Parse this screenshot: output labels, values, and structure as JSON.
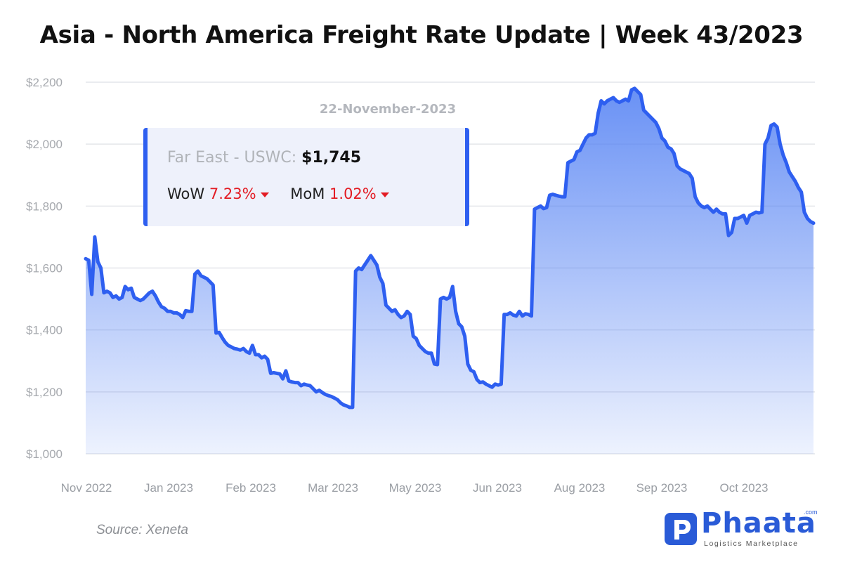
{
  "title": "Asia - North America Freight Rate Update | Week 43/2023",
  "source": "Source: Xeneta",
  "logo": {
    "wordmark": "Phaata",
    "domain": ".com",
    "tagline": "Logistics Marketplace"
  },
  "infobox": {
    "route": "Far East - USWC:",
    "price": "$1,745",
    "wow_label": "WoW",
    "wow_value": "7.23%",
    "mom_label": "MoM",
    "mom_value": "1.02%",
    "direction_icon": "caret-down-icon",
    "change_color": "#e31b23"
  },
  "chart_data": {
    "type": "area",
    "date_label": "22-November-2023",
    "ylim": [
      1000,
      2200
    ],
    "yticks": [
      1000,
      1200,
      1400,
      1600,
      1800,
      2000,
      2200
    ],
    "ytick_labels": [
      "$1,000",
      "$1,200",
      "$1,400",
      "$1,600",
      "$1,800",
      "$2,000",
      "$2,200"
    ],
    "xtick_labels": [
      "Nov 2022",
      "Jan 2023",
      "Feb 2023",
      "Mar 2023",
      "May 2023",
      "Jun 2023",
      "Aug 2023",
      "Sep 2023",
      "Oct 2023"
    ],
    "grid": true,
    "line_color": "#2e5ff0",
    "fill_color": "#5b8af5",
    "series": [
      {
        "values": [
          1630,
          1625,
          1515,
          1700,
          1620,
          1600,
          1520,
          1525,
          1520,
          1505,
          1510,
          1500,
          1505,
          1540,
          1530,
          1535,
          1505,
          1500,
          1495,
          1500,
          1510,
          1520,
          1525,
          1510,
          1490,
          1475,
          1470,
          1460,
          1460,
          1455,
          1455,
          1450,
          1440,
          1462,
          1460,
          1460,
          1580,
          1590,
          1575,
          1570,
          1565,
          1555,
          1545,
          1390,
          1392,
          1375,
          1360,
          1350,
          1345,
          1340,
          1338,
          1335,
          1340,
          1330,
          1325,
          1350,
          1320,
          1320,
          1310,
          1315,
          1305,
          1260,
          1262,
          1260,
          1258,
          1242,
          1268,
          1235,
          1232,
          1230,
          1230,
          1220,
          1225,
          1222,
          1220,
          1210,
          1200,
          1205,
          1198,
          1192,
          1188,
          1185,
          1180,
          1175,
          1165,
          1158,
          1155,
          1150,
          1150,
          1590,
          1600,
          1595,
          1610,
          1625,
          1640,
          1625,
          1610,
          1570,
          1550,
          1480,
          1470,
          1460,
          1465,
          1450,
          1440,
          1445,
          1460,
          1450,
          1380,
          1372,
          1350,
          1340,
          1330,
          1325,
          1325,
          1290,
          1288,
          1500,
          1505,
          1500,
          1505,
          1540,
          1460,
          1420,
          1410,
          1380,
          1290,
          1270,
          1265,
          1240,
          1230,
          1232,
          1225,
          1220,
          1215,
          1225,
          1222,
          1225,
          1450,
          1450,
          1455,
          1448,
          1445,
          1460,
          1445,
          1452,
          1450,
          1445,
          1790,
          1795,
          1800,
          1792,
          1795,
          1835,
          1838,
          1835,
          1832,
          1830,
          1830,
          1940,
          1945,
          1950,
          1975,
          1980,
          2000,
          2020,
          2030,
          2030,
          2035,
          2100,
          2140,
          2130,
          2140,
          2145,
          2150,
          2140,
          2135,
          2140,
          2145,
          2140,
          2175,
          2180,
          2170,
          2160,
          2110,
          2100,
          2090,
          2080,
          2070,
          2050,
          2020,
          2010,
          1990,
          1985,
          1970,
          1930,
          1920,
          1915,
          1910,
          1905,
          1890,
          1830,
          1810,
          1800,
          1795,
          1800,
          1790,
          1780,
          1790,
          1780,
          1775,
          1775,
          1705,
          1715,
          1760,
          1760,
          1765,
          1770,
          1745,
          1770,
          1775,
          1780,
          1778,
          1780,
          2000,
          2020,
          2060,
          2065,
          2055,
          2000,
          1965,
          1940,
          1910,
          1895,
          1880,
          1860,
          1845,
          1780,
          1760,
          1750,
          1745
        ]
      }
    ]
  }
}
